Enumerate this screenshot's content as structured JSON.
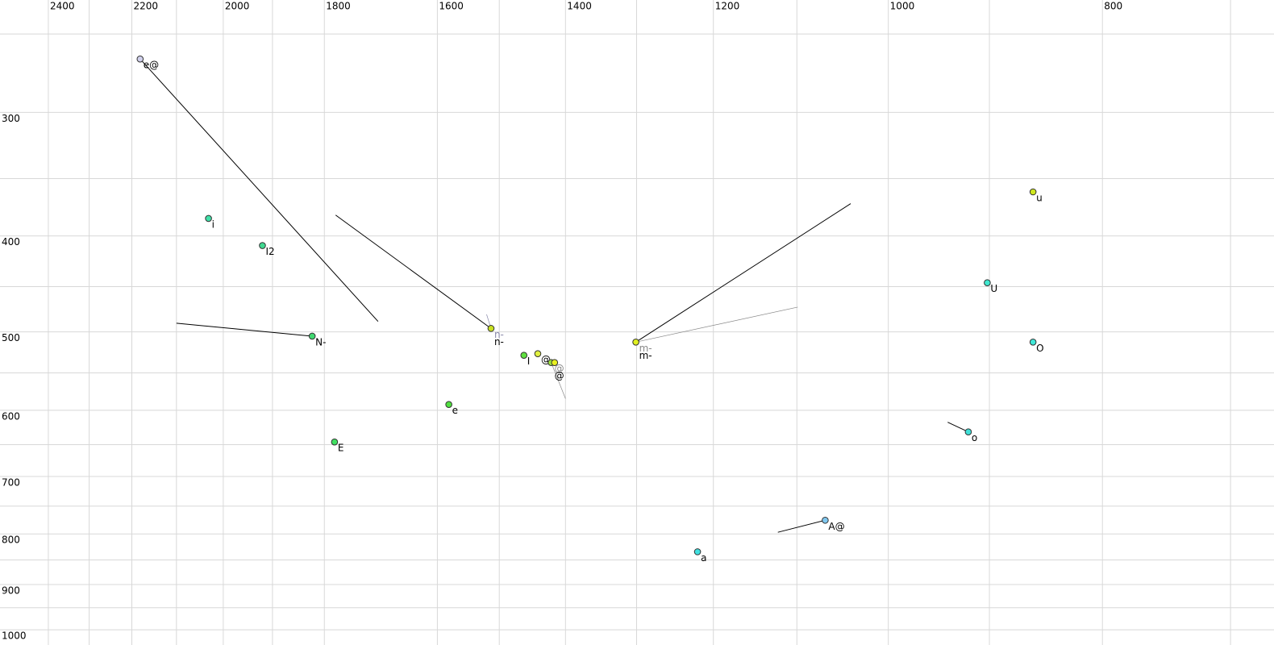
{
  "chart_data": {
    "type": "scatter",
    "xscale": "log",
    "yscale": "log",
    "xreverse": true,
    "grid": true,
    "xlim": [
      2524,
      669
    ],
    "ylim": [
      231,
      1036
    ],
    "xticks": [
      2400,
      2200,
      2000,
      1800,
      1600,
      1400,
      1200,
      1000,
      800
    ],
    "yticks": [
      300,
      400,
      500,
      600,
      700,
      800,
      900,
      1000
    ],
    "xgrid": [
      2400,
      2300,
      2200,
      2100,
      2000,
      1900,
      1800,
      1600,
      1500,
      1400,
      1300,
      1200,
      1100,
      1000,
      900,
      800,
      700
    ],
    "ygrid": [
      250,
      300,
      350,
      400,
      450,
      500,
      550,
      600,
      650,
      700,
      750,
      800,
      850,
      900,
      950,
      1000
    ],
    "labels": [
      "e@",
      "i",
      "I2",
      "N-",
      "E",
      "e",
      "n-",
      "I",
      "@",
      "@",
      null,
      "m-",
      "a",
      "A@",
      "o",
      "O",
      "U",
      "u"
    ],
    "x": [
      2181,
      2031,
      1920,
      1823,
      1781,
      1581,
      1513,
      1462,
      1441,
      1421,
      1416,
      1301,
      1220,
      1068,
      920,
      860,
      902,
      860
    ],
    "y": [
      265,
      384,
      409,
      505,
      646,
      592,
      496,
      528,
      526,
      537,
      537,
      512,
      834,
      775,
      631,
      512,
      446,
      361
    ],
    "colors": [
      "#d0d0ec",
      "#40e0a8",
      "#40d890",
      "#40d870",
      "#40e060",
      "#50e040",
      "#c8e020",
      "#60e040",
      "#e0f040",
      "#a0e840",
      "#e8f020",
      "#e0f020",
      "#40e0e0",
      "#80c8f0",
      "#40e0d8",
      "#40e8d8",
      "#40e8d0",
      "#d0e820"
    ],
    "tracks": [
      {
        "x": [
          2181,
          1702
        ],
        "y": [
          265,
          488
        ],
        "color": "#000000"
      },
      {
        "x": [
          1823,
          2100
        ],
        "y": [
          505,
          490
        ],
        "color": "#000000"
      },
      {
        "x": [
          1513,
          1779
        ],
        "y": [
          496,
          381
        ],
        "color": "#000000"
      },
      {
        "label": "n-",
        "x": [
          1513,
          1520
        ],
        "y": [
          496,
          480
        ],
        "color": "#8888aa"
      },
      {
        "x": [
          1301,
          1040
        ],
        "y": [
          512,
          371
        ],
        "color": "#000000"
      },
      {
        "label": "m-",
        "x": [
          1301,
          1099
        ],
        "y": [
          512,
          472
        ],
        "color": "#888888"
      },
      {
        "label": "@",
        "x": [
          1421,
          1400
        ],
        "y": [
          537,
          584
        ],
        "color": "#888888"
      },
      {
        "x": [
          1068,
          1122
        ],
        "y": [
          775,
          797
        ],
        "color": "#000000"
      },
      {
        "x": [
          920,
          940
        ],
        "y": [
          631,
          617
        ],
        "color": "#000000"
      }
    ]
  }
}
